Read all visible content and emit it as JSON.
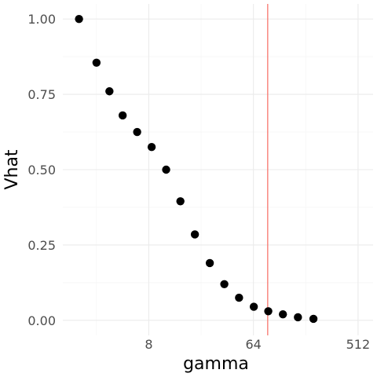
{
  "chart_data": {
    "type": "scatter",
    "xlabel": "gamma",
    "ylabel": "Vhat",
    "x_scale": "log2",
    "x_ticks": [
      {
        "value": 8,
        "label": "8"
      },
      {
        "value": 64,
        "label": "64"
      },
      {
        "value": 512,
        "label": "512"
      }
    ],
    "y_ticks": [
      {
        "value": 0.0,
        "label": "0.00"
      },
      {
        "value": 0.25,
        "label": "0.25"
      },
      {
        "value": 0.5,
        "label": "0.50"
      },
      {
        "value": 0.75,
        "label": "0.75"
      },
      {
        "value": 1.0,
        "label": "1.00"
      }
    ],
    "xlim": [
      1.45,
      690
    ],
    "ylim": [
      -0.05,
      1.05
    ],
    "grid": true,
    "points": [
      {
        "x": 2,
        "y": 1.0
      },
      {
        "x": 2.83,
        "y": 0.855
      },
      {
        "x": 3.66,
        "y": 0.76
      },
      {
        "x": 4.76,
        "y": 0.68
      },
      {
        "x": 6.35,
        "y": 0.625
      },
      {
        "x": 8.47,
        "y": 0.575
      },
      {
        "x": 11.3,
        "y": 0.5
      },
      {
        "x": 15.0,
        "y": 0.395
      },
      {
        "x": 20.0,
        "y": 0.285
      },
      {
        "x": 26.9,
        "y": 0.19
      },
      {
        "x": 35.9,
        "y": 0.12
      },
      {
        "x": 48.1,
        "y": 0.075
      },
      {
        "x": 64.5,
        "y": 0.045
      },
      {
        "x": 86.0,
        "y": 0.03
      },
      {
        "x": 115.0,
        "y": 0.02
      },
      {
        "x": 155.0,
        "y": 0.01
      },
      {
        "x": 211.0,
        "y": 0.005
      }
    ],
    "vline": {
      "x": 85,
      "color": "#f8766d"
    },
    "colors": {
      "point": "#000000",
      "grid_major": "#ebebeb",
      "grid_minor": "#f5f5f5"
    }
  }
}
